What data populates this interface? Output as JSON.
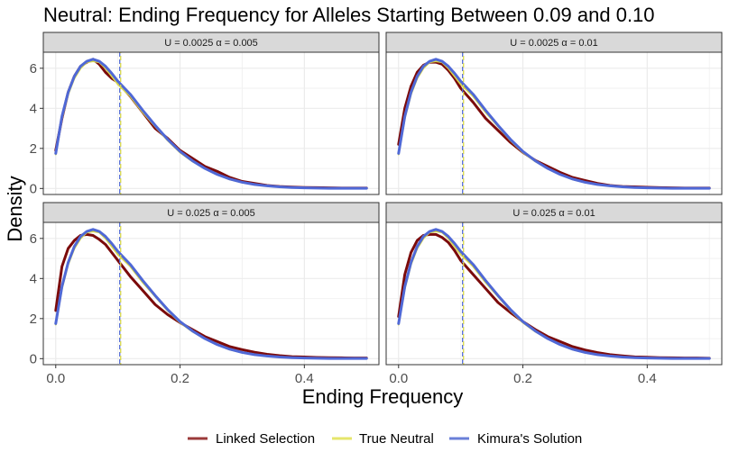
{
  "chart_data": {
    "type": "line",
    "title": "Neutral: Ending Frequency for Alleles Starting Between 0.09 and 0.10",
    "xlabel": "Ending Frequency",
    "ylabel": "Density",
    "xlim": [
      -0.02,
      0.52
    ],
    "ylim": [
      -0.3,
      6.8
    ],
    "x_ticks": [
      0.0,
      0.2,
      0.4
    ],
    "x_tick_labels": [
      "0.0",
      "0.2",
      "0.4"
    ],
    "y_ticks": [
      0,
      2,
      4,
      6
    ],
    "y_tick_labels": [
      "0",
      "2",
      "4",
      "6"
    ],
    "grid": true,
    "legend_position": "bottom",
    "vline_x": 0.103,
    "series_styles": [
      {
        "name": "Linked Selection",
        "color": "#7b0a0a",
        "legend_color": "#9b3a3a"
      },
      {
        "name": "True Neutral",
        "color": "#d9d94a",
        "legend_color": "#e6e66b"
      },
      {
        "name": "Kimura's Solution",
        "color": "#4f68d6",
        "legend_color": "#6a7fd8"
      }
    ],
    "x": [
      0.0,
      0.01,
      0.02,
      0.03,
      0.04,
      0.05,
      0.06,
      0.07,
      0.08,
      0.09,
      0.1,
      0.12,
      0.14,
      0.16,
      0.18,
      0.2,
      0.22,
      0.24,
      0.26,
      0.28,
      0.3,
      0.32,
      0.34,
      0.36,
      0.38,
      0.4,
      0.42,
      0.44,
      0.46,
      0.48,
      0.5
    ],
    "panels": [
      {
        "strip": "U = 0.0025 α = 0.005",
        "series": [
          {
            "name": "Linked Selection",
            "values": [
              1.9,
              3.5,
              4.8,
              5.6,
              6.1,
              6.3,
              6.45,
              6.2,
              5.8,
              5.5,
              5.3,
              4.6,
              3.8,
              3.0,
              2.5,
              1.9,
              1.5,
              1.1,
              0.85,
              0.55,
              0.35,
              0.25,
              0.15,
              0.1,
              0.07,
              0.05,
              0.04,
              0.03,
              0.02,
              0.02,
              0.02
            ]
          },
          {
            "name": "True Neutral",
            "values": [
              1.7,
              3.5,
              4.7,
              5.5,
              6.0,
              6.3,
              6.35,
              6.3,
              6.0,
              5.6,
              5.2,
              4.6,
              3.8,
              3.1,
              2.4,
              1.8,
              1.35,
              1.0,
              0.7,
              0.45,
              0.3,
              0.2,
              0.12,
              0.08,
              0.05,
              0.03,
              0.02,
              0.02,
              0.01,
              0.01,
              0.01
            ]
          },
          {
            "name": "Kimura's Solution",
            "values": [
              1.75,
              3.6,
              4.8,
              5.6,
              6.1,
              6.35,
              6.45,
              6.35,
              6.1,
              5.75,
              5.35,
              4.7,
              3.9,
              3.15,
              2.45,
              1.85,
              1.38,
              1.0,
              0.7,
              0.47,
              0.31,
              0.2,
              0.13,
              0.08,
              0.05,
              0.03,
              0.02,
              0.01,
              0.01,
              0.01,
              0.01
            ]
          }
        ]
      },
      {
        "strip": "U = 0.0025 α = 0.01",
        "series": [
          {
            "name": "Linked Selection",
            "values": [
              2.2,
              4.0,
              5.1,
              5.8,
              6.15,
              6.3,
              6.3,
              6.2,
              5.9,
              5.5,
              5.0,
              4.3,
              3.5,
              2.9,
              2.3,
              1.8,
              1.4,
              1.1,
              0.8,
              0.55,
              0.4,
              0.25,
              0.15,
              0.1,
              0.08,
              0.06,
              0.04,
              0.03,
              0.02,
              0.02,
              0.02
            ]
          },
          {
            "name": "True Neutral",
            "values": [
              1.7,
              3.5,
              4.7,
              5.5,
              6.0,
              6.3,
              6.35,
              6.3,
              6.0,
              5.6,
              5.2,
              4.6,
              3.8,
              3.1,
              2.4,
              1.8,
              1.35,
              1.0,
              0.7,
              0.45,
              0.3,
              0.2,
              0.12,
              0.08,
              0.05,
              0.03,
              0.02,
              0.02,
              0.01,
              0.01,
              0.01
            ]
          },
          {
            "name": "Kimura's Solution",
            "values": [
              1.75,
              3.6,
              4.8,
              5.6,
              6.1,
              6.35,
              6.45,
              6.35,
              6.1,
              5.75,
              5.35,
              4.7,
              3.9,
              3.15,
              2.45,
              1.85,
              1.38,
              1.0,
              0.7,
              0.47,
              0.31,
              0.2,
              0.13,
              0.08,
              0.05,
              0.03,
              0.02,
              0.01,
              0.01,
              0.01,
              0.01
            ]
          }
        ]
      },
      {
        "strip": "U = 0.025 α = 0.005",
        "series": [
          {
            "name": "Linked Selection",
            "values": [
              2.4,
              4.6,
              5.5,
              5.9,
              6.15,
              6.2,
              6.15,
              5.95,
              5.7,
              5.3,
              4.9,
              4.1,
              3.4,
              2.7,
              2.2,
              1.8,
              1.45,
              1.1,
              0.85,
              0.6,
              0.45,
              0.32,
              0.22,
              0.15,
              0.1,
              0.08,
              0.06,
              0.05,
              0.04,
              0.03,
              0.03
            ]
          },
          {
            "name": "True Neutral",
            "values": [
              1.7,
              3.5,
              4.7,
              5.5,
              6.0,
              6.3,
              6.35,
              6.3,
              6.0,
              5.6,
              5.2,
              4.6,
              3.8,
              3.1,
              2.4,
              1.8,
              1.35,
              1.0,
              0.7,
              0.45,
              0.3,
              0.2,
              0.12,
              0.08,
              0.05,
              0.03,
              0.02,
              0.02,
              0.01,
              0.01,
              0.01
            ]
          },
          {
            "name": "Kimura's Solution",
            "values": [
              1.75,
              3.6,
              4.8,
              5.6,
              6.1,
              6.35,
              6.45,
              6.35,
              6.1,
              5.75,
              5.35,
              4.7,
              3.9,
              3.15,
              2.45,
              1.85,
              1.38,
              1.0,
              0.7,
              0.47,
              0.31,
              0.2,
              0.13,
              0.08,
              0.05,
              0.03,
              0.02,
              0.01,
              0.01,
              0.01,
              0.01
            ]
          }
        ]
      },
      {
        "strip": "U = 0.025 α = 0.01",
        "series": [
          {
            "name": "Linked Selection",
            "values": [
              2.1,
              4.2,
              5.3,
              5.9,
              6.15,
              6.2,
              6.2,
              6.05,
              5.8,
              5.4,
              4.9,
              4.2,
              3.5,
              2.8,
              2.3,
              1.85,
              1.45,
              1.1,
              0.85,
              0.6,
              0.43,
              0.3,
              0.2,
              0.14,
              0.09,
              0.07,
              0.05,
              0.04,
              0.03,
              0.03,
              0.02
            ]
          },
          {
            "name": "True Neutral",
            "values": [
              1.7,
              3.5,
              4.7,
              5.5,
              6.0,
              6.3,
              6.35,
              6.3,
              6.0,
              5.6,
              5.2,
              4.6,
              3.8,
              3.1,
              2.4,
              1.8,
              1.35,
              1.0,
              0.7,
              0.45,
              0.3,
              0.2,
              0.12,
              0.08,
              0.05,
              0.03,
              0.02,
              0.02,
              0.01,
              0.01,
              0.01
            ]
          },
          {
            "name": "Kimura's Solution",
            "values": [
              1.75,
              3.6,
              4.8,
              5.6,
              6.1,
              6.35,
              6.45,
              6.35,
              6.1,
              5.75,
              5.35,
              4.7,
              3.9,
              3.15,
              2.45,
              1.85,
              1.38,
              1.0,
              0.7,
              0.47,
              0.31,
              0.2,
              0.13,
              0.08,
              0.05,
              0.03,
              0.02,
              0.01,
              0.01,
              0.01,
              0.01
            ]
          }
        ]
      }
    ]
  }
}
